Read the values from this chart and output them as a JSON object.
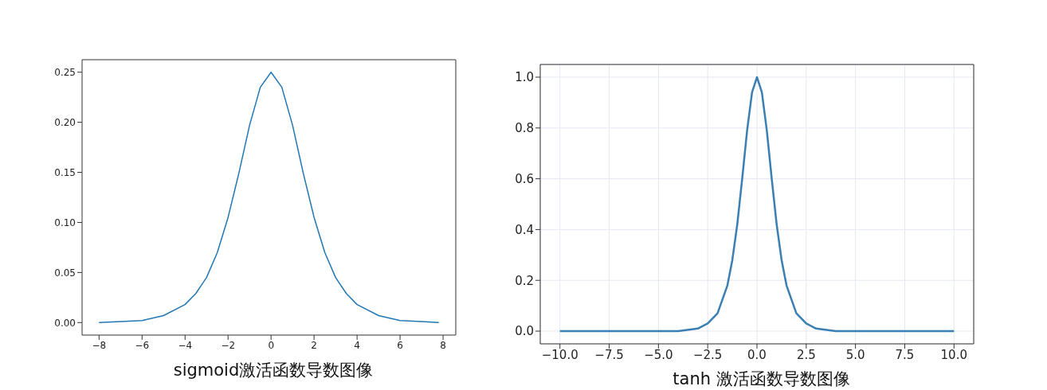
{
  "chart_data": [
    {
      "type": "line",
      "title": "sigmoid激活函数导数图像",
      "x": [
        -8,
        -7,
        -6,
        -5,
        -4,
        -3.5,
        -3,
        -2.5,
        -2,
        -1.5,
        -1,
        -0.5,
        0,
        0.5,
        1,
        1.5,
        2,
        2.5,
        3,
        3.5,
        4,
        5,
        6,
        7,
        7.8
      ],
      "values": [
        0.0,
        0.001,
        0.002,
        0.007,
        0.018,
        0.029,
        0.045,
        0.07,
        0.105,
        0.149,
        0.197,
        0.235,
        0.25,
        0.235,
        0.197,
        0.149,
        0.105,
        0.07,
        0.045,
        0.029,
        0.018,
        0.007,
        0.002,
        0.001,
        0.0
      ],
      "color": "#1f77b4",
      "xlim": [
        -8.79,
        8.59
      ],
      "ylim": [
        -0.0125,
        0.2625
      ],
      "xticks": [
        {
          "value": -8,
          "label": "−8"
        },
        {
          "value": -6,
          "label": "−6"
        },
        {
          "value": -4,
          "label": "−4"
        },
        {
          "value": -2,
          "label": "−2"
        },
        0,
        2,
        4,
        6,
        8
      ],
      "yticks": [
        {
          "value": 0,
          "label": "0.00"
        },
        {
          "value": 0.05,
          "label": "0.05"
        },
        {
          "value": 0.1,
          "label": "0.10"
        },
        {
          "value": 0.15,
          "label": "0.15"
        },
        {
          "value": 0.2,
          "label": "0.20"
        },
        {
          "value": 0.25,
          "label": "0.25"
        }
      ]
    },
    {
      "type": "line",
      "title": "tanh 激活函数导数图像",
      "x": [
        -10,
        -5,
        -4,
        -3,
        -2.5,
        -2,
        -1.5,
        -1.25,
        -1,
        -0.75,
        -0.5,
        -0.25,
        0,
        0.25,
        0.5,
        0.75,
        1,
        1.25,
        1.5,
        2,
        2.5,
        3,
        4,
        5,
        10
      ],
      "values": [
        0,
        0,
        0,
        0.01,
        0.03,
        0.07,
        0.18,
        0.28,
        0.42,
        0.6,
        0.79,
        0.94,
        1,
        0.94,
        0.79,
        0.6,
        0.42,
        0.28,
        0.18,
        0.07,
        0.03,
        0.01,
        0,
        0,
        0
      ],
      "color": "#3a7fb4",
      "xlim": [
        -11,
        11
      ],
      "ylim": [
        -0.05,
        1.05
      ],
      "grid": true,
      "xticks": [
        {
          "value": -10,
          "label": "−10.0"
        },
        {
          "value": -7.5,
          "label": "−7.5"
        },
        {
          "value": -5,
          "label": "−5.0"
        },
        {
          "value": -2.5,
          "label": "−2.5"
        },
        {
          "value": 0,
          "label": "0.0"
        },
        {
          "value": 2.5,
          "label": "2.5"
        },
        {
          "value": 5,
          "label": "5.0"
        },
        {
          "value": 7.5,
          "label": "7.5"
        },
        {
          "value": 10,
          "label": "10.0"
        }
      ],
      "yticks": [
        {
          "value": 0,
          "label": "0.0"
        },
        {
          "value": 0.2,
          "label": "0.2"
        },
        {
          "value": 0.4,
          "label": "0.4"
        },
        {
          "value": 0.6,
          "label": "0.6"
        },
        {
          "value": 0.8,
          "label": "0.8"
        },
        {
          "value": 1,
          "label": "1.0"
        }
      ]
    }
  ]
}
